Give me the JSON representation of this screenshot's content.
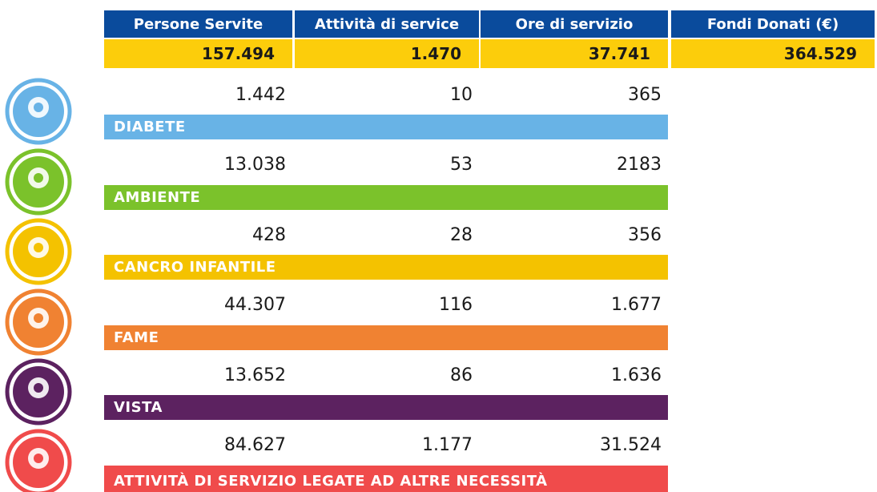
{
  "header": {
    "columns": [
      "Persone Servite",
      "Attività di service",
      "Ore di servizio",
      "Fondi Donati (€)"
    ]
  },
  "totals": [
    "157.494",
    "1.470",
    "37.741",
    "364.529"
  ],
  "categories": [
    {
      "label": "DIABETE",
      "values": [
        "1.442",
        "10",
        "365"
      ],
      "color": "#68b3e6"
    },
    {
      "label": "AMBIENTE",
      "values": [
        "13.038",
        "53",
        "2183"
      ],
      "color": "#7bc22b"
    },
    {
      "label": "CANCRO INFANTILE",
      "values": [
        "428",
        "28",
        "356"
      ],
      "color": "#f4c200"
    },
    {
      "label": "FAME",
      "values": [
        "44.307",
        "116",
        "1.677"
      ],
      "color": "#f08232"
    },
    {
      "label": "VISTA",
      "values": [
        "13.652",
        "86",
        "1.636"
      ],
      "color": "#5c2260"
    },
    {
      "label": "ATTIVITÀ DI SERVIZIO LEGATE AD ALTRE NECESSITÀ",
      "values": [
        "84.627",
        "1.177",
        "31.524"
      ],
      "color": "#f04b4b"
    }
  ]
}
